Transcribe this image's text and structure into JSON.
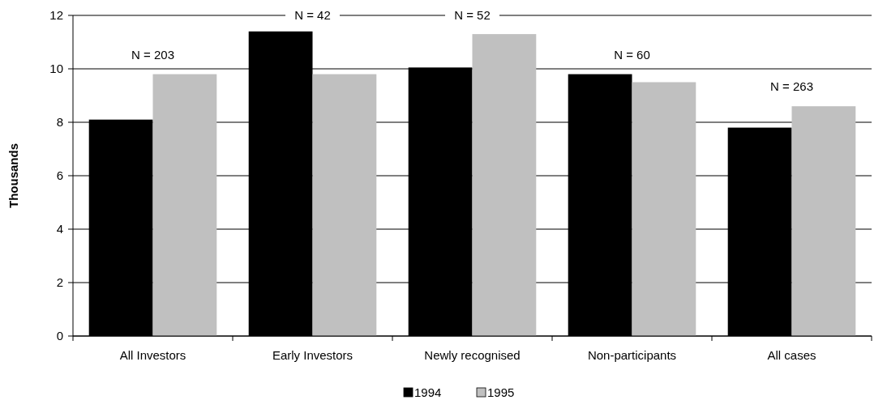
{
  "chart_data": {
    "type": "bar",
    "ylabel": "Thousands",
    "categories": [
      "All Investors",
      "Early Investors",
      "Newly recognised",
      "Non-participants",
      "All cases"
    ],
    "series": [
      {
        "name": "1994",
        "color": "#000000",
        "values": [
          8.1,
          11.4,
          10.05,
          9.8,
          7.8
        ]
      },
      {
        "name": "1995",
        "color": "#c0c0c0",
        "values": [
          9.8,
          9.8,
          11.3,
          9.5,
          8.6
        ]
      }
    ],
    "ylim": [
      0,
      12
    ],
    "yticks": [
      0,
      2,
      4,
      6,
      8,
      10,
      12
    ],
    "grid": "y",
    "legend": "bottom",
    "annotations": [
      "N = 203",
      "N = 42",
      "N = 52",
      "N = 60",
      "N = 263"
    ]
  }
}
